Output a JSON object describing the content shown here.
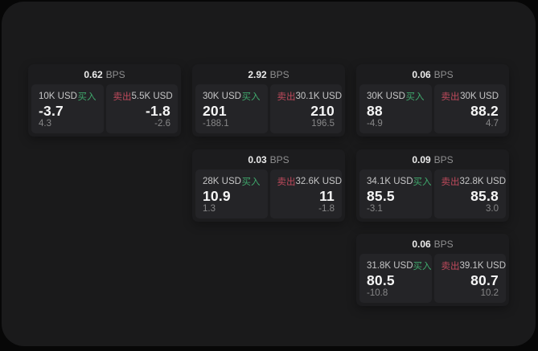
{
  "colors": {
    "buy": "#3fa86c",
    "sell": "#bf4a5c"
  },
  "labels": {
    "bps_unit": "BPS",
    "buy": "买入",
    "sell": "卖出"
  },
  "cards": [
    {
      "col": 1,
      "row": 1,
      "bps": "0.62",
      "buy": {
        "amount": "10K USD",
        "value": "-3.7",
        "sub": "4.3"
      },
      "sell": {
        "amount": "5.5K USD",
        "value": "-1.8",
        "sub": "-2.6"
      }
    },
    {
      "col": 2,
      "row": 1,
      "bps": "2.92",
      "buy": {
        "amount": "30K USD",
        "value": "201",
        "sub": "-188.1"
      },
      "sell": {
        "amount": "30.1K USD",
        "value": "210",
        "sub": "196.5"
      }
    },
    {
      "col": 3,
      "row": 1,
      "bps": "0.06",
      "buy": {
        "amount": "30K USD",
        "value": "88",
        "sub": "-4.9"
      },
      "sell": {
        "amount": "30K USD",
        "value": "88.2",
        "sub": "4.7"
      }
    },
    {
      "col": 2,
      "row": 2,
      "bps": "0.03",
      "buy": {
        "amount": "28K USD",
        "value": "10.9",
        "sub": "1.3"
      },
      "sell": {
        "amount": "32.6K USD",
        "value": "11",
        "sub": "-1.8"
      }
    },
    {
      "col": 3,
      "row": 2,
      "bps": "0.09",
      "buy": {
        "amount": "34.1K USD",
        "value": "85.5",
        "sub": "-3.1"
      },
      "sell": {
        "amount": "32.8K USD",
        "value": "85.8",
        "sub": "3.0"
      }
    },
    {
      "col": 3,
      "row": 3,
      "bps": "0.06",
      "buy": {
        "amount": "31.8K USD",
        "value": "80.5",
        "sub": "-10.8"
      },
      "sell": {
        "amount": "39.1K USD",
        "value": "80.7",
        "sub": "10.2"
      }
    }
  ]
}
